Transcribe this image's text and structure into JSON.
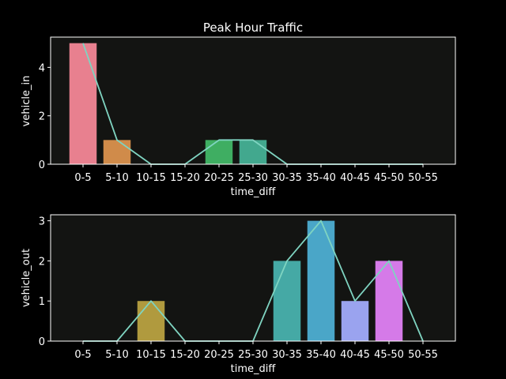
{
  "chart_data": [
    {
      "type": "bar",
      "title": "Peak Hour Traffic",
      "xlabel": "time_diff",
      "ylabel": "vehicle_in",
      "categories": [
        "0-5",
        "5-10",
        "10-15",
        "15-20",
        "20-25",
        "25-30",
        "30-35",
        "35-40",
        "40-45",
        "45-50",
        "50-55"
      ],
      "values": [
        5,
        1,
        0,
        0,
        1,
        1,
        0,
        0,
        0,
        0,
        0
      ],
      "ylim": [
        0,
        5.25
      ],
      "yticks": [
        0,
        2,
        4
      ],
      "overlay_line": true,
      "grid": false,
      "colors": [
        "#e8808f",
        "#d08b4a",
        "#b09a3e",
        "#8fa63b",
        "#3fae62",
        "#42a88e",
        "#45a9a5",
        "#4aa6c8",
        "#9aa3ef",
        "#d57ae8",
        "#e97fbb"
      ]
    },
    {
      "type": "bar",
      "title": "",
      "xlabel": "time_diff",
      "ylabel": "vehicle_out",
      "categories": [
        "0-5",
        "5-10",
        "10-15",
        "15-20",
        "20-25",
        "25-30",
        "30-35",
        "35-40",
        "40-45",
        "45-50",
        "50-55"
      ],
      "values": [
        0,
        0,
        1,
        0,
        0,
        0,
        2,
        3,
        1,
        2,
        0
      ],
      "ylim": [
        0,
        3.15
      ],
      "yticks": [
        0,
        1,
        2,
        3
      ],
      "overlay_line": true,
      "grid": false,
      "colors": [
        "#e8808f",
        "#d08b4a",
        "#b09a3e",
        "#8fa63b",
        "#3fae62",
        "#42a88e",
        "#45a9a5",
        "#4aa6c8",
        "#9aa3ef",
        "#d57ae8",
        "#e97fbb"
      ]
    }
  ],
  "style": {
    "page_bg": "#000000",
    "axes_bg": "#131412",
    "line_color": "#7fd4c1",
    "spine_color": "#ffffff",
    "text_color": "#ffffff"
  }
}
